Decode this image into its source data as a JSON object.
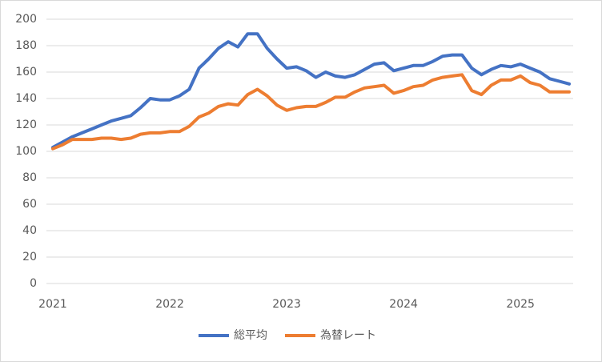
{
  "chart_data": {
    "type": "line",
    "categories": [
      "2021",
      null,
      null,
      null,
      null,
      null,
      null,
      null,
      null,
      null,
      null,
      null,
      "2022",
      null,
      null,
      null,
      null,
      null,
      null,
      null,
      null,
      null,
      null,
      null,
      "2023",
      null,
      null,
      null,
      null,
      null,
      null,
      null,
      null,
      null,
      null,
      null,
      "2024",
      null,
      null,
      null,
      null,
      null,
      null,
      null,
      null,
      null,
      null,
      null,
      "2025",
      null,
      null,
      null,
      null,
      null
    ],
    "series": [
      {
        "name": "総平均",
        "color": "#4472c4",
        "values": [
          103,
          107,
          111,
          114,
          117,
          120,
          123,
          125,
          127,
          133,
          140,
          139,
          139,
          142,
          147,
          163,
          170,
          178,
          183,
          179,
          189,
          189,
          178,
          170,
          163,
          164,
          161,
          156,
          160,
          157,
          156,
          158,
          162,
          166,
          167,
          161,
          163,
          165,
          165,
          168,
          172,
          173,
          173,
          163,
          158,
          162,
          165,
          164,
          166,
          163,
          160,
          155,
          153,
          151
        ]
      },
      {
        "name": "為替レート",
        "color": "#ed7d31",
        "values": [
          102,
          105,
          109,
          109,
          109,
          110,
          110,
          109,
          110,
          113,
          114,
          114,
          115,
          115,
          119,
          126,
          129,
          134,
          136,
          135,
          143,
          147,
          142,
          135,
          131,
          133,
          134,
          134,
          137,
          141,
          141,
          145,
          148,
          149,
          150,
          144,
          146,
          149,
          150,
          154,
          156,
          157,
          158,
          146,
          143,
          150,
          154,
          154,
          157,
          152,
          150,
          145,
          145,
          145
        ]
      }
    ],
    "ylim": [
      0,
      200
    ],
    "yticks": [
      0,
      20,
      40,
      60,
      80,
      100,
      120,
      140,
      160,
      180,
      200
    ],
    "grid": true,
    "legend": "bottom"
  }
}
